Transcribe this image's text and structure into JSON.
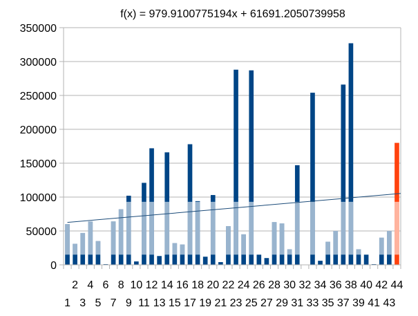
{
  "chart_data": {
    "type": "bar",
    "title": "f(x) = 979.9100775194x + 61691.2050739958",
    "xlabel": "",
    "ylabel": "",
    "ylim": [
      0,
      350000
    ],
    "yticks": [
      "0",
      "50000",
      "100000",
      "150000",
      "200000",
      "250000",
      "300000",
      "350000"
    ],
    "grid": true,
    "legend": "none",
    "categories": [
      "1",
      "2",
      "3",
      "4",
      "5",
      "6",
      "7",
      "8",
      "9",
      "10",
      "11",
      "12",
      "13",
      "14",
      "15",
      "16",
      "17",
      "18",
      "19",
      "20",
      "21",
      "22",
      "23",
      "24",
      "25",
      "26",
      "27",
      "28",
      "29",
      "30",
      "31",
      "32",
      "33",
      "34",
      "35",
      "36",
      "37",
      "38",
      "39",
      "40",
      "41",
      "42",
      "43",
      "44"
    ],
    "values": [
      60000,
      31000,
      47000,
      64000,
      35000,
      1000,
      64000,
      82000,
      102000,
      5000,
      121000,
      172000,
      13000,
      166000,
      32000,
      30000,
      178000,
      94000,
      12000,
      103000,
      4000,
      57000,
      288000,
      45000,
      287000,
      15000,
      10000,
      63000,
      61000,
      23000,
      147000,
      0,
      254000,
      6000,
      34000,
      50000,
      266000,
      327000,
      23000,
      15000,
      1000,
      40000,
      50000,
      180000
    ],
    "highlight_index": 43,
    "trendline": {
      "slope": 979.9100775194,
      "intercept": 61691.2050739958
    },
    "colors": {
      "bar": "#004586",
      "highlight": "#ff420e",
      "trend": "#1a4a78",
      "grid": "#b3b3b3"
    }
  }
}
